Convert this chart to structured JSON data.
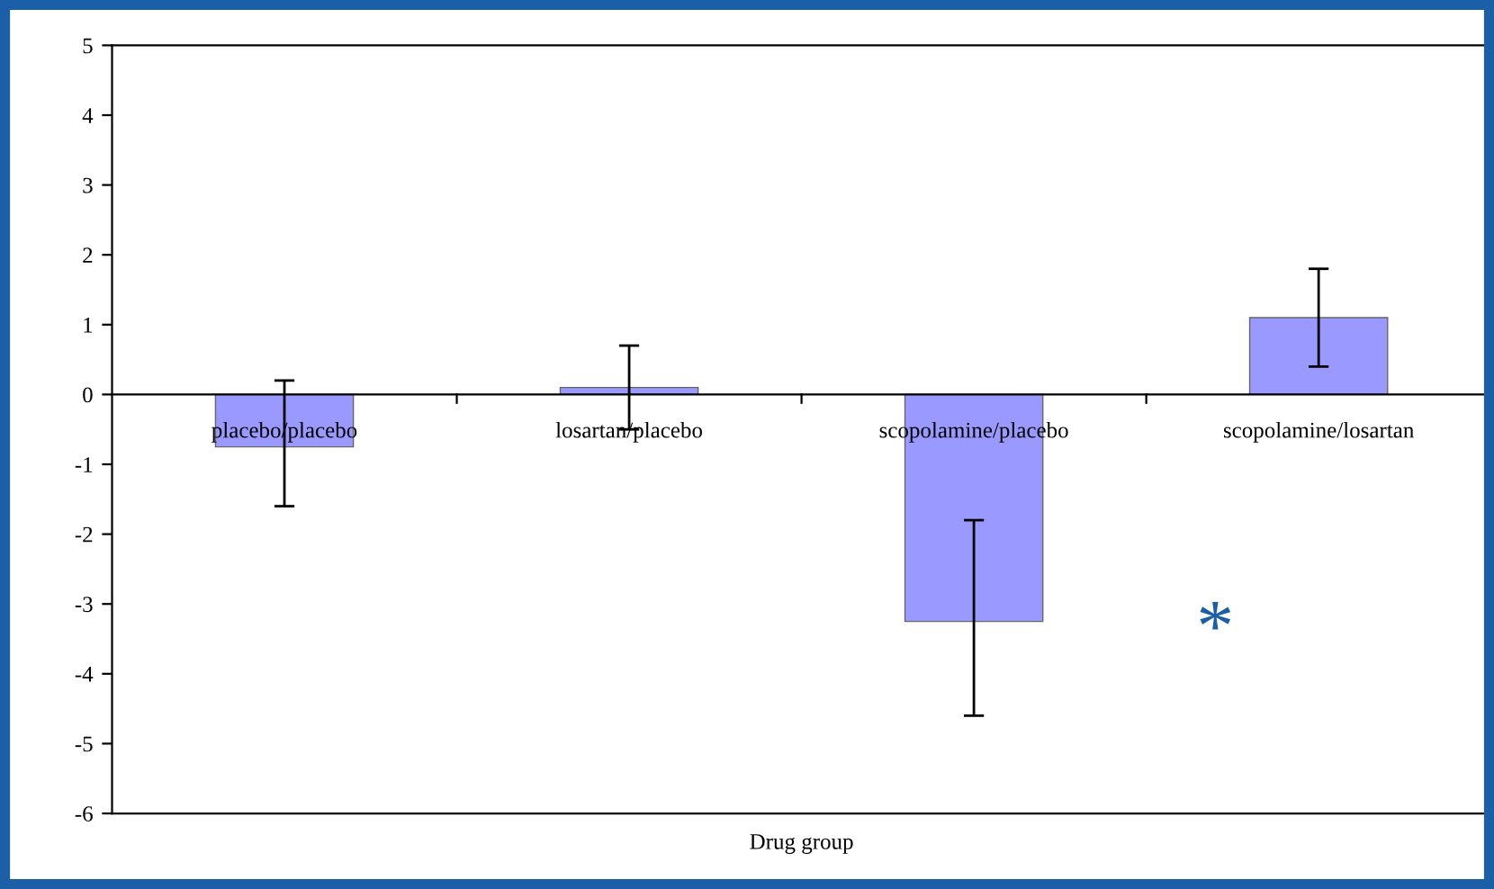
{
  "chart_data": {
    "type": "bar",
    "xlabel": "Drug group",
    "categories": [
      "placebo/placebo",
      "losartan/placebo",
      "scopolamine/placebo",
      "scopolamine/losartan"
    ],
    "values": [
      -0.75,
      0.1,
      -3.25,
      1.1
    ],
    "errors": [
      [
        -1.6,
        0.2
      ],
      [
        -0.5,
        0.7
      ],
      [
        -4.6,
        -1.8
      ],
      [
        0.4,
        1.8
      ]
    ],
    "color": "#9999ff",
    "ylim": [
      -6,
      5
    ],
    "yticks": [
      -6,
      -5,
      -4,
      -3,
      -2,
      -1,
      0,
      1,
      2,
      3,
      4,
      5
    ],
    "annotations": [
      "*"
    ]
  }
}
